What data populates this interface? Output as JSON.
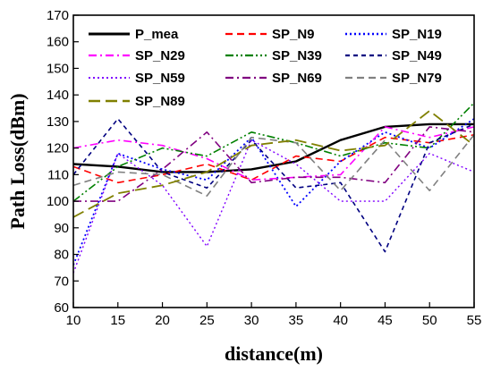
{
  "chart_data": {
    "type": "line",
    "xlabel": "distance(m)",
    "ylabel": "Path Loss(dBm)",
    "xlim": [
      10,
      55
    ],
    "ylim": [
      60,
      170
    ],
    "x_ticks": [
      10,
      15,
      20,
      25,
      30,
      35,
      40,
      45,
      50,
      55
    ],
    "y_ticks": [
      60,
      70,
      80,
      90,
      100,
      110,
      120,
      130,
      140,
      150,
      160,
      170
    ],
    "grid": false,
    "legend_position": "top-left",
    "legend_columns": 3,
    "x": [
      10,
      15,
      20,
      25,
      30,
      35,
      40,
      45,
      50,
      55
    ],
    "series": [
      {
        "name": "P_mea",
        "color": "#000000",
        "dash": "solid",
        "width": 2.4,
        "values": [
          114,
          113,
          111,
          111,
          112,
          115,
          123,
          128,
          129,
          129
        ]
      },
      {
        "name": "SP_N9",
        "color": "#ff0000",
        "dash": "dash",
        "width": 1.6,
        "values": [
          113,
          107,
          110,
          114,
          108,
          117,
          115,
          124,
          122,
          125
        ]
      },
      {
        "name": "SP_N19",
        "color": "#0000ff",
        "dash": "dot",
        "width": 1.8,
        "values": [
          76,
          118,
          112,
          108,
          124,
          98,
          115,
          126,
          120,
          131
        ]
      },
      {
        "name": "SP_N29",
        "color": "#ff00ff",
        "dash": "dashdot",
        "width": 1.6,
        "values": [
          120,
          123,
          121,
          116,
          108,
          109,
          110,
          128,
          124,
          128
        ]
      },
      {
        "name": "SP_N39",
        "color": "#008000",
        "dash": "dashdotdot",
        "width": 1.6,
        "values": [
          100,
          113,
          120,
          117,
          126,
          122,
          117,
          122,
          120,
          137
        ]
      },
      {
        "name": "SP_N49",
        "color": "#000080",
        "dash": "shortdash",
        "width": 1.6,
        "values": [
          110,
          131,
          111,
          105,
          123,
          105,
          107,
          81,
          122,
          129
        ]
      },
      {
        "name": "SP_N59",
        "color": "#8000ff",
        "dash": "dot",
        "width": 1.4,
        "values": [
          73,
          118,
          106,
          83,
          123,
          114,
          100,
          100,
          118,
          111
        ]
      },
      {
        "name": "SP_N69",
        "color": "#800080",
        "dash": "dashdot",
        "width": 1.6,
        "values": [
          100,
          100,
          112,
          126,
          107,
          109,
          109,
          107,
          128,
          126
        ]
      },
      {
        "name": "SP_N79",
        "color": "#808080",
        "dash": "dash",
        "width": 1.6,
        "values": [
          106,
          111,
          110,
          102,
          124,
          122,
          104,
          123,
          104,
          125
        ]
      },
      {
        "name": "SP_N89",
        "color": "#808000",
        "dash": "longdash",
        "width": 1.8,
        "values": [
          94,
          103,
          106,
          111,
          121,
          123,
          119,
          121,
          134,
          121
        ]
      }
    ]
  }
}
